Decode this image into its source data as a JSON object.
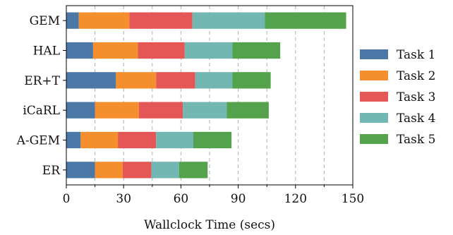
{
  "chart_data": {
    "type": "bar",
    "orientation": "horizontal",
    "stacked": true,
    "categories": [
      "GEM",
      "HAL",
      "ER+T",
      "iCaRL",
      "A-GEM",
      "ER"
    ],
    "series": [
      {
        "name": "Task 1",
        "color": "#4c78a8",
        "values": [
          6.5,
          14,
          26,
          15,
          7.5,
          15
        ]
      },
      {
        "name": "Task 2",
        "color": "#f58f2d",
        "values": [
          26.5,
          23.5,
          21,
          23,
          19.5,
          14.5
        ]
      },
      {
        "name": "Task 3",
        "color": "#e45756",
        "values": [
          33,
          24.5,
          20.5,
          23,
          20,
          15
        ]
      },
      {
        "name": "Task 4",
        "color": "#72b7b2",
        "values": [
          38,
          25,
          19.5,
          23,
          19.5,
          14.5
        ]
      },
      {
        "name": "Task 5",
        "color": "#54a24b",
        "values": [
          42.5,
          25,
          20,
          22,
          20,
          15
        ]
      }
    ],
    "xlabel": "Wallclock Time (secs)",
    "ylabel": "",
    "xlim": [
      0,
      150
    ],
    "xticks": [
      0,
      30,
      60,
      90,
      120,
      150
    ],
    "xticks_minor": [
      15,
      45,
      75,
      105,
      135
    ],
    "grid": "vertical-dashed",
    "legend": {
      "position": "right",
      "entries": [
        "Task 1",
        "Task 2",
        "Task 3",
        "Task 4",
        "Task 5"
      ]
    }
  }
}
